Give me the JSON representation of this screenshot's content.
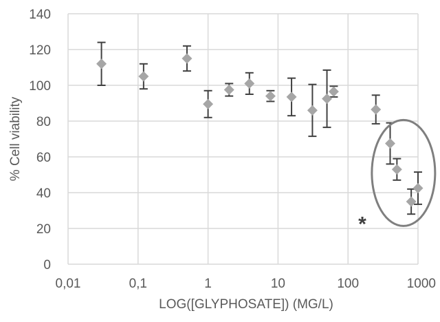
{
  "chart_data": {
    "type": "scatter",
    "title": "",
    "xlabel": "LOG([GLYPHOSATE]) (MG/L)",
    "ylabel": "% Cell viability",
    "x_scale": "log",
    "xlim": [
      0.01,
      1000
    ],
    "ylim": [
      0,
      140
    ],
    "x_ticks": [
      0.01,
      0.1,
      1,
      10,
      100,
      1000
    ],
    "x_tick_labels": [
      "0,01",
      "0,1",
      "1",
      "10",
      "100",
      "1000"
    ],
    "y_ticks": [
      0,
      20,
      40,
      60,
      80,
      100,
      120,
      140
    ],
    "y_tick_labels": [
      "0",
      "20",
      "40",
      "60",
      "80",
      "100",
      "120",
      "140"
    ],
    "grid": true,
    "series": [
      {
        "marker": "diamond",
        "color": "#a6a6a6",
        "error_color": "#404040",
        "points": [
          {
            "x": 0.03,
            "y": 112,
            "err": 12
          },
          {
            "x": 0.12,
            "y": 105,
            "err": 7
          },
          {
            "x": 0.5,
            "y": 115,
            "err": 7
          },
          {
            "x": 1,
            "y": 89.5,
            "err": 7.5
          },
          {
            "x": 2,
            "y": 97.5,
            "err": 3.5
          },
          {
            "x": 3.9,
            "y": 101,
            "err": 6
          },
          {
            "x": 7.8,
            "y": 94,
            "err": 3
          },
          {
            "x": 15.6,
            "y": 93.5,
            "err": 10.5
          },
          {
            "x": 31,
            "y": 86,
            "err": 14.5
          },
          {
            "x": 50,
            "y": 92.5,
            "err": 16
          },
          {
            "x": 62.5,
            "y": 96.5,
            "err": 3
          },
          {
            "x": 250,
            "y": 86.5,
            "err": 8
          },
          {
            "x": 400,
            "y": 67.5,
            "err": 11.5
          },
          {
            "x": 500,
            "y": 53,
            "err": 6
          },
          {
            "x": 800,
            "y": 35,
            "err": 7
          },
          {
            "x": 1000,
            "y": 42.5,
            "err": 9
          }
        ]
      }
    ],
    "annotations": [
      {
        "type": "text",
        "text": "*",
        "x": 160,
        "y": 24
      },
      {
        "type": "ellipse",
        "cx": 620,
        "cy": 51,
        "color": "#7f7f7f"
      }
    ]
  }
}
